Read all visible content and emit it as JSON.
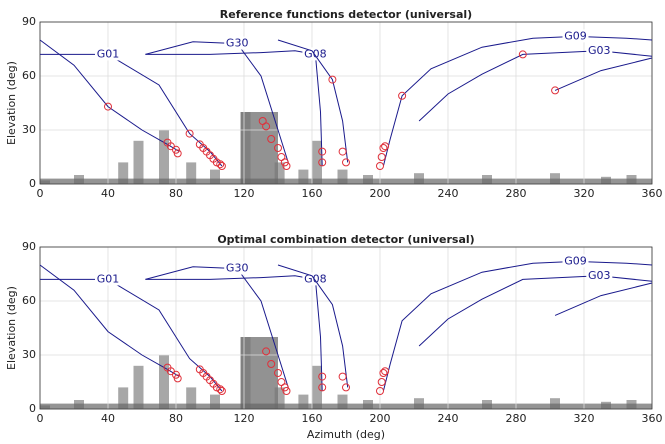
{
  "chart_data": [
    {
      "type": "line",
      "title": "Reference functions detector (universal)",
      "ylabel": "Elevation (deg)",
      "xlim": [
        0,
        360
      ],
      "ylim": [
        0,
        90
      ],
      "xticks": [
        0,
        40,
        80,
        120,
        160,
        200,
        240,
        280,
        320,
        360
      ],
      "yticks": [
        0,
        30,
        60,
        90
      ],
      "grid": true,
      "series": [
        {
          "name": "G01",
          "color": "#1a1a8c",
          "x": [
            0,
            40,
            70,
            88,
            100,
            107
          ],
          "values": [
            72,
            72,
            55,
            28,
            18,
            10
          ]
        },
        {
          "color": "#1a1a8c",
          "x": [
            0,
            20,
            40,
            60,
            75,
            82
          ],
          "values": [
            80,
            66,
            43,
            30,
            22,
            18
          ]
        },
        {
          "name": "G30",
          "color": "#1a1a8c",
          "x": [
            62,
            90,
            116,
            130,
            140,
            146
          ],
          "values": [
            72,
            79,
            78,
            60,
            30,
            12
          ]
        },
        {
          "name": "G08",
          "color": "#1a1a8c",
          "x": [
            62,
            100,
            130,
            150,
            162,
            165,
            166
          ],
          "values": [
            72,
            72,
            73,
            74,
            72,
            40,
            10
          ]
        },
        {
          "color": "#1a1a8c",
          "x": [
            140,
            160,
            172,
            178,
            181
          ],
          "values": [
            80,
            74,
            58,
            35,
            12
          ]
        },
        {
          "name": "G09",
          "color": "#1a1a8c",
          "x": [
            202,
            206,
            213,
            230,
            260,
            290,
            315,
            345,
            360
          ],
          "values": [
            10,
            25,
            49,
            64,
            76,
            81,
            82,
            81,
            80
          ]
        },
        {
          "name": "G03",
          "color": "#1a1a8c",
          "x": [
            223,
            240,
            260,
            284,
            329,
            360
          ],
          "values": [
            35,
            50,
            61,
            72,
            74,
            71
          ]
        },
        {
          "color": "#1a1a8c",
          "x": [
            303,
            330,
            360
          ],
          "values": [
            52,
            63,
            70
          ]
        }
      ],
      "markers": {
        "color": "#e0303a",
        "x": [
          40,
          88,
          75,
          77,
          80,
          81,
          94,
          96,
          98,
          100,
          102,
          104,
          106,
          107,
          131,
          133,
          136,
          140,
          142,
          144,
          145,
          166,
          166,
          172,
          178,
          180,
          200,
          201,
          202,
          203,
          213,
          284,
          303
        ],
        "values": [
          43,
          28,
          23,
          21,
          19,
          17,
          22,
          20,
          18,
          16,
          14,
          12,
          11,
          10,
          35,
          32,
          25,
          20,
          15,
          12,
          10,
          18,
          12,
          58,
          18,
          12,
          10,
          15,
          20,
          21,
          49,
          72,
          52
        ]
      }
    },
    {
      "type": "line",
      "title": "Optimal combination detector (universal)",
      "xlabel": "Azimuth (deg)",
      "ylabel": "Elevation (deg)",
      "xlim": [
        0,
        360
      ],
      "ylim": [
        0,
        90
      ],
      "xticks": [
        0,
        40,
        80,
        120,
        160,
        200,
        240,
        280,
        320,
        360
      ],
      "yticks": [
        0,
        30,
        60,
        90
      ],
      "grid": true,
      "series": [
        {
          "name": "G01",
          "color": "#1a1a8c",
          "x": [
            0,
            40,
            70,
            88,
            100,
            107
          ],
          "values": [
            72,
            72,
            55,
            28,
            18,
            10
          ]
        },
        {
          "color": "#1a1a8c",
          "x": [
            0,
            20,
            40,
            60,
            75,
            82
          ],
          "values": [
            80,
            66,
            43,
            30,
            22,
            18
          ]
        },
        {
          "name": "G30",
          "color": "#1a1a8c",
          "x": [
            62,
            90,
            116,
            130,
            140,
            146
          ],
          "values": [
            72,
            79,
            78,
            60,
            30,
            12
          ]
        },
        {
          "name": "G08",
          "color": "#1a1a8c",
          "x": [
            62,
            100,
            130,
            150,
            162,
            165,
            166
          ],
          "values": [
            72,
            72,
            73,
            74,
            72,
            40,
            10
          ]
        },
        {
          "color": "#1a1a8c",
          "x": [
            140,
            160,
            172,
            178,
            181
          ],
          "values": [
            80,
            74,
            58,
            35,
            12
          ]
        },
        {
          "name": "G09",
          "color": "#1a1a8c",
          "x": [
            202,
            206,
            213,
            230,
            260,
            290,
            315,
            345,
            360
          ],
          "values": [
            10,
            25,
            49,
            64,
            76,
            81,
            82,
            81,
            80
          ]
        },
        {
          "name": "G03",
          "color": "#1a1a8c",
          "x": [
            223,
            240,
            260,
            284,
            329,
            360
          ],
          "values": [
            35,
            50,
            61,
            72,
            74,
            71
          ]
        },
        {
          "color": "#1a1a8c",
          "x": [
            303,
            330,
            360
          ],
          "values": [
            52,
            63,
            70
          ]
        }
      ],
      "markers": {
        "color": "#e0303a",
        "x": [
          75,
          77,
          80,
          81,
          94,
          96,
          98,
          100,
          102,
          104,
          106,
          107,
          133,
          136,
          140,
          142,
          144,
          145,
          166,
          166,
          178,
          180,
          200,
          201,
          202,
          203
        ],
        "values": [
          23,
          21,
          19,
          17,
          22,
          20,
          18,
          16,
          14,
          12,
          11,
          10,
          32,
          25,
          20,
          15,
          12,
          10,
          18,
          12,
          18,
          12,
          10,
          15,
          20,
          21
        ]
      }
    }
  ]
}
